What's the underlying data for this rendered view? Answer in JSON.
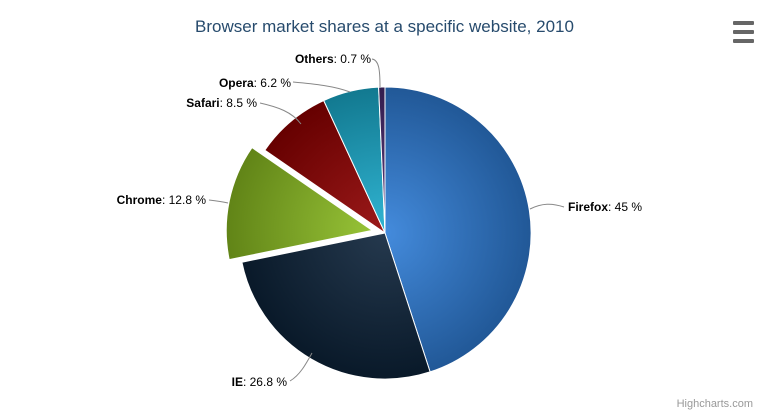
{
  "title": "Browser market shares at a specific website, 2010",
  "credits": "Highcharts.com",
  "menu_icon": "hamburger-menu-icon",
  "background_color": "#ffffff",
  "title_color": "#274b6d",
  "connector_color": "#888888",
  "chart_data": {
    "type": "pie",
    "title": "Browser market shares at a specific website, 2010",
    "legend": false,
    "value_suffix": "%",
    "label_format": "{name}: {y} %",
    "series": [
      {
        "name": "Browser share",
        "points": [
          {
            "name": "Firefox",
            "y": 45,
            "color": "#2f7ed8",
            "sliced": false
          },
          {
            "name": "IE",
            "y": 26.8,
            "color": "#0d233a",
            "sliced": false
          },
          {
            "name": "Chrome",
            "y": 12.8,
            "color": "#8bbc21",
            "sliced": true
          },
          {
            "name": "Safari",
            "y": 8.5,
            "color": "#910000",
            "sliced": false
          },
          {
            "name": "Opera",
            "y": 6.2,
            "color": "#1aadce",
            "sliced": false
          },
          {
            "name": "Others",
            "y": 0.7,
            "color": "#492970",
            "sliced": false
          }
        ]
      }
    ]
  }
}
